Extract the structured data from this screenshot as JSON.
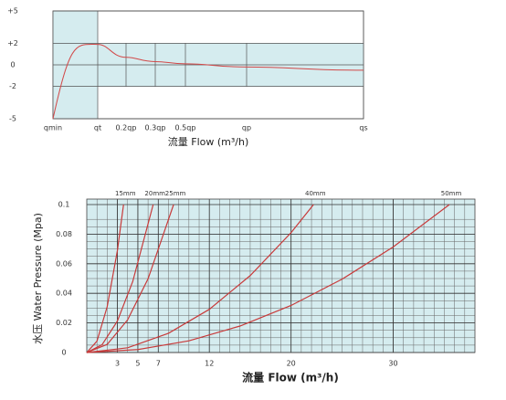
{
  "chart_data": [
    {
      "type": "line",
      "categories": [
        "qmin",
        "qt",
        "0.2qp",
        "0.3qp",
        "0.5qp",
        "qp",
        "qs"
      ],
      "series": [
        {
          "color": "#d24848",
          "values": [
            -5,
            1.9,
            0.7,
            0.3,
            0.1,
            -0.2,
            -0.5
          ]
        }
      ],
      "ylim": [
        -5,
        5
      ],
      "yticks": [
        {
          "value": 5,
          "label": "+5"
        },
        {
          "value": 2,
          "label": "+2"
        },
        0,
        -2,
        -5
      ],
      "xlabel": "流量  Flow (m³/h)"
    },
    {
      "type": "line",
      "xlim": [
        0,
        38
      ],
      "ylim": [
        0,
        0.1
      ],
      "xticks": [
        3,
        5,
        7,
        12,
        20,
        30
      ],
      "yticks": [
        0,
        0.02,
        0.04,
        0.06,
        0.08,
        0.1
      ],
      "series": [
        {
          "name": "15mm",
          "color": "#c83a3a",
          "x": [
            0,
            1,
            2,
            3,
            3.6
          ],
          "values": [
            0,
            0.0077,
            0.031,
            0.069,
            0.1
          ]
        },
        {
          "name": "20mm",
          "color": "#c83a3a",
          "x": [
            0,
            1.5,
            3,
            4.5,
            6.5
          ],
          "values": [
            0,
            0.0053,
            0.0213,
            0.048,
            0.1
          ]
        },
        {
          "name": "25mm",
          "color": "#c83a3a",
          "x": [
            0,
            2,
            4,
            6,
            8.5
          ],
          "values": [
            0,
            0.0055,
            0.0221,
            0.0498,
            0.1
          ]
        },
        {
          "name": "40mm",
          "color": "#c83a3a",
          "x": [
            0,
            4,
            8,
            12,
            16,
            20,
            22.2
          ],
          "values": [
            0,
            0.0032,
            0.013,
            0.0292,
            0.052,
            0.081,
            0.1
          ]
        },
        {
          "name": "50mm",
          "color": "#c83a3a",
          "x": [
            0,
            5,
            10,
            15,
            20,
            25,
            30,
            35.5
          ],
          "values": [
            0,
            0.002,
            0.0079,
            0.0179,
            0.0318,
            0.0496,
            0.0714,
            0.1
          ]
        }
      ],
      "xlabel": "流量  Flow (m³/h)",
      "ylabel": "水压  Water Pressure (Mpa)"
    }
  ]
}
